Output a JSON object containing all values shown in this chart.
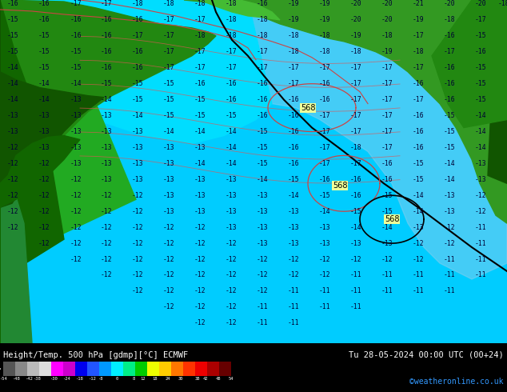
{
  "title_left": "Height/Temp. 500 hPa [gdmp][°C] ECMWF",
  "title_right": "Tu 28-05-2024 00:00 UTC (00+24)",
  "credit": "©weatheronline.co.uk",
  "colorbar_colors": [
    "#555555",
    "#888888",
    "#bbbbbb",
    "#dddddd",
    "#ff00ff",
    "#cc00cc",
    "#0000ee",
    "#2255ff",
    "#0099ff",
    "#00eeff",
    "#00ee88",
    "#00cc00",
    "#eeff00",
    "#ffcc00",
    "#ff7700",
    "#ff3300",
    "#ee0000",
    "#aa0000",
    "#660000"
  ],
  "ocean_color": "#00ccff",
  "ocean_color2": "#55ddff",
  "light_blue_color": "#aaddff",
  "land_color_dark": "#116600",
  "land_color_mid": "#227711",
  "land_color_light": "#44aa22",
  "contour_black": "#000000",
  "contour_red": "#cc4444",
  "temp_text_color": "#000033",
  "label_568_bg": "#eeff99",
  "footer_bg": "#000000",
  "footer_text": "#ffffff",
  "credit_color": "#3399ff",
  "fig_width": 6.34,
  "fig_height": 4.9,
  "dpi": 100
}
